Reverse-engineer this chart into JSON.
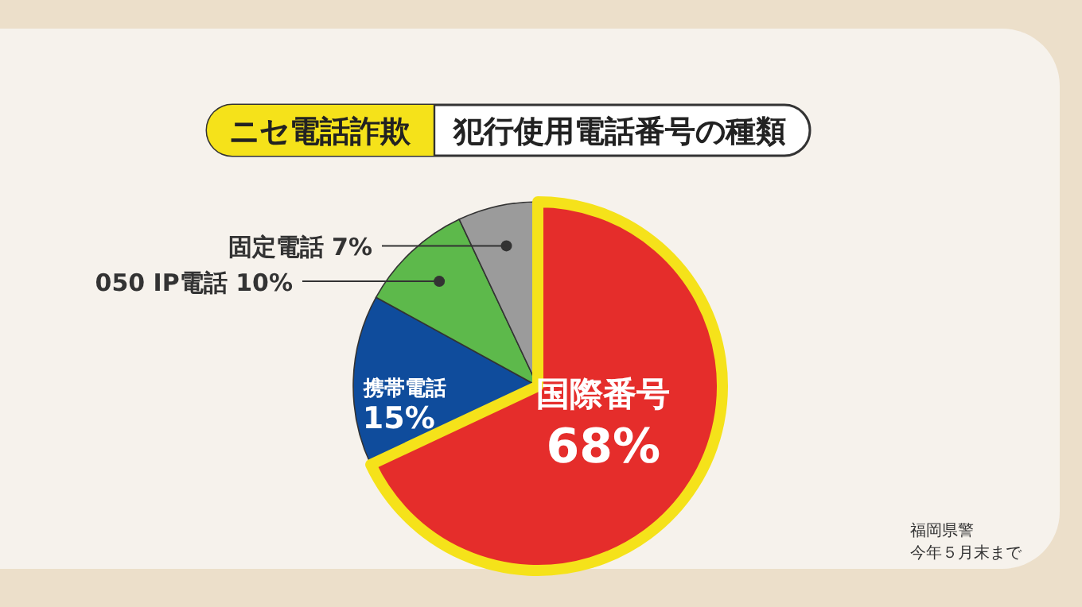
{
  "chart_data": {
    "type": "pie",
    "title": "ニセ電話詐欺",
    "subtitle": "犯行使用電話番号の種類",
    "categories": [
      "国際番号",
      "携帯電話",
      "050 IP電話",
      "固定電話"
    ],
    "values": [
      68,
      15,
      10,
      7
    ],
    "colors": [
      "#e52d2b",
      "#0f4c9c",
      "#5db94b",
      "#9b9b9b"
    ],
    "value_labels": [
      "68%",
      "15%",
      "10%",
      "7%"
    ],
    "annotations": [
      "福岡県警",
      "今年５月末まで"
    ]
  }
}
